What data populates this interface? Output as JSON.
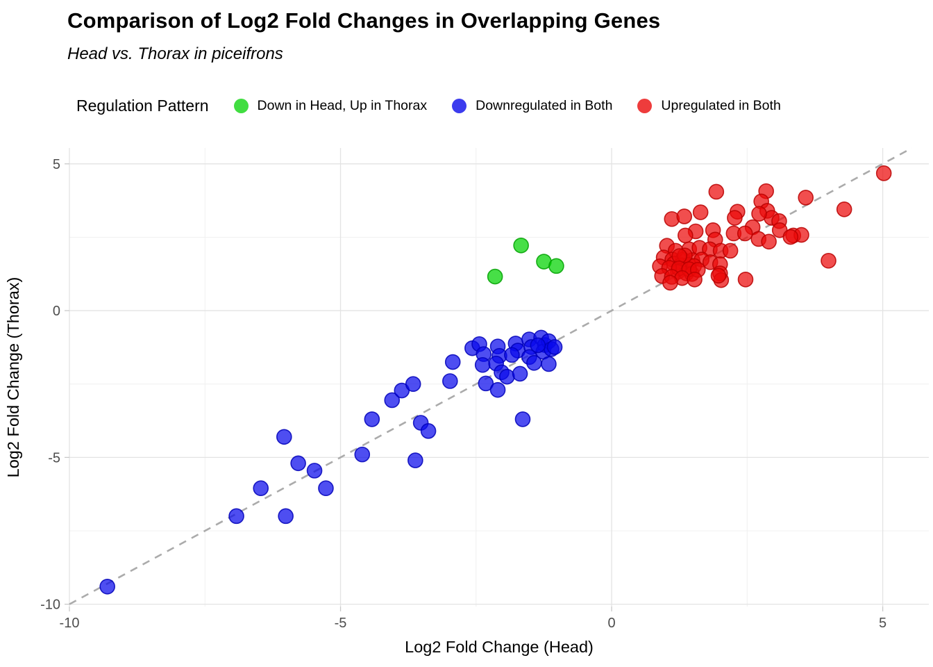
{
  "header": {
    "title": "Comparison of Log2 Fold Changes in Overlapping Genes",
    "subtitle": "Head vs. Thorax in piceifrons"
  },
  "legend": {
    "title": "Regulation Pattern",
    "items": [
      {
        "label": "Down in Head, Up in Thorax",
        "color": "#41dd41"
      },
      {
        "label": "Downregulated in Both",
        "color": "#3c3cee"
      },
      {
        "label": "Upregulated in Both",
        "color": "#ee3c3c"
      }
    ]
  },
  "axes": {
    "x_label": "Log2 Fold Change (Head)",
    "y_label": "Log2 Fold Change (Thorax)",
    "x_tick_labels": [
      "-10",
      "-5",
      "0",
      "5"
    ],
    "y_tick_labels": [
      "-10",
      "-5",
      "0",
      "5"
    ]
  },
  "chart_data": {
    "type": "scatter",
    "title": "Comparison of Log2 Fold Changes in Overlapping Genes",
    "subtitle": "Head vs. Thorax in piceifrons",
    "xlabel": "Log2 Fold Change (Head)",
    "ylabel": "Log2 Fold Change (Thorax)",
    "xlim": [
      -10.0,
      5.85
    ],
    "ylim": [
      -10.08,
      5.54
    ],
    "x_ticks": [
      -10,
      -5,
      0,
      5
    ],
    "y_ticks": [
      -10,
      -5,
      0,
      5
    ],
    "x_minor_ticks": [
      -7.5,
      -2.5,
      2.5
    ],
    "y_minor_ticks": [
      -7.5,
      -2.5,
      2.5
    ],
    "grid": "on",
    "legend_position": "top",
    "point_radius": 10.5,
    "identity_line": {
      "equation": "y = x",
      "from": -10.0,
      "to": 5.54,
      "color": "#ababab",
      "style": "dashed"
    },
    "colors": {
      "major_grid": "#e3e3e3",
      "minor_grid": "#f0f0f0",
      "tick_text": "#4d4d4d",
      "tick_mark": "#c9c9c9"
    },
    "series": [
      {
        "id": "green",
        "name": "Down in Head, Up in Thorax",
        "color": "#41dd41",
        "fill_rgba": "rgba(0,210,0,0.72)",
        "stroke_rgba": "rgba(0,160,0,0.85)",
        "points": [
          [
            -2.15,
            1.16
          ],
          [
            -1.67,
            2.22
          ],
          [
            -1.25,
            1.67
          ],
          [
            -1.02,
            1.52
          ]
        ]
      },
      {
        "id": "blue",
        "name": "Downregulated in Both",
        "color": "#3c3cee",
        "fill_rgba": "rgba(10,10,235,0.72)",
        "stroke_rgba": "rgba(0,0,185,0.85)",
        "points": [
          [
            -9.3,
            -9.4
          ],
          [
            -6.92,
            -7.0
          ],
          [
            -6.01,
            -7.0
          ],
          [
            -6.47,
            -6.05
          ],
          [
            -5.27,
            -6.05
          ],
          [
            -6.04,
            -4.3
          ],
          [
            -5.78,
            -5.2
          ],
          [
            -5.48,
            -5.45
          ],
          [
            -4.6,
            -4.9
          ],
          [
            -3.62,
            -5.1
          ],
          [
            -4.42,
            -3.7
          ],
          [
            -4.05,
            -3.05
          ],
          [
            -3.87,
            -2.72
          ],
          [
            -3.66,
            -2.5
          ],
          [
            -3.52,
            -3.82
          ],
          [
            -3.38,
            -4.1
          ],
          [
            -1.64,
            -3.7
          ],
          [
            -2.93,
            -1.75
          ],
          [
            -2.98,
            -2.4
          ],
          [
            -2.57,
            -1.28
          ],
          [
            -2.44,
            -1.14
          ],
          [
            -2.36,
            -1.48
          ],
          [
            -2.38,
            -1.85
          ],
          [
            -2.32,
            -2.48
          ],
          [
            -2.1,
            -1.22
          ],
          [
            -2.07,
            -1.54
          ],
          [
            -2.13,
            -1.8
          ],
          [
            -2.03,
            -2.1
          ],
          [
            -2.1,
            -2.7
          ],
          [
            -1.93,
            -2.25
          ],
          [
            -1.77,
            -1.12
          ],
          [
            -1.73,
            -1.36
          ],
          [
            -1.84,
            -1.51
          ],
          [
            -1.69,
            -2.15
          ],
          [
            -1.52,
            -0.98
          ],
          [
            -1.48,
            -1.24
          ],
          [
            -1.52,
            -1.58
          ],
          [
            -1.43,
            -1.78
          ],
          [
            -1.3,
            -0.92
          ],
          [
            -1.23,
            -1.17
          ],
          [
            -1.26,
            -1.4
          ],
          [
            -1.16,
            -1.04
          ],
          [
            -1.11,
            -1.31
          ],
          [
            -1.05,
            -1.24
          ],
          [
            -1.16,
            -1.82
          ],
          [
            -1.36,
            -1.18
          ]
        ]
      },
      {
        "id": "red",
        "name": "Upregulated in Both",
        "color": "#ee3c3c",
        "fill_rgba": "rgba(235,10,10,0.72)",
        "stroke_rgba": "rgba(185,0,0,0.85)",
        "points": [
          [
            5.02,
            4.68
          ],
          [
            4.29,
            3.45
          ],
          [
            4.0,
            1.7
          ],
          [
            3.58,
            3.85
          ],
          [
            2.85,
            4.07
          ],
          [
            1.93,
            4.05
          ],
          [
            2.76,
            3.72
          ],
          [
            2.87,
            3.4
          ],
          [
            2.95,
            3.16
          ],
          [
            3.09,
            3.05
          ],
          [
            3.35,
            2.56
          ],
          [
            3.5,
            2.58
          ],
          [
            2.32,
            3.37
          ],
          [
            2.27,
            3.16
          ],
          [
            1.11,
            3.12
          ],
          [
            1.34,
            3.21
          ],
          [
            1.64,
            3.35
          ],
          [
            2.72,
            3.3
          ],
          [
            1.55,
            2.7
          ],
          [
            1.87,
            2.74
          ],
          [
            2.6,
            2.84
          ],
          [
            3.1,
            2.74
          ],
          [
            3.3,
            2.51
          ],
          [
            2.25,
            2.63
          ],
          [
            2.46,
            2.63
          ],
          [
            1.36,
            2.56
          ],
          [
            1.91,
            2.42
          ],
          [
            2.71,
            2.44
          ],
          [
            2.9,
            2.35
          ],
          [
            1.02,
            2.21
          ],
          [
            1.18,
            2.04
          ],
          [
            1.43,
            2.09
          ],
          [
            1.62,
            2.14
          ],
          [
            1.81,
            2.09
          ],
          [
            2.01,
            2.04
          ],
          [
            2.19,
            2.04
          ],
          [
            0.96,
            1.81
          ],
          [
            1.12,
            1.74
          ],
          [
            1.31,
            1.74
          ],
          [
            1.49,
            1.72
          ],
          [
            1.66,
            1.74
          ],
          [
            1.82,
            1.65
          ],
          [
            2.0,
            1.58
          ],
          [
            1.15,
            1.6
          ],
          [
            1.28,
            1.55
          ],
          [
            1.42,
            1.56
          ],
          [
            1.22,
            1.32
          ],
          [
            1.38,
            1.27
          ],
          [
            1.52,
            1.52
          ],
          [
            1.35,
            1.88
          ],
          [
            1.25,
            1.86
          ],
          [
            1.48,
            1.25
          ],
          [
            0.89,
            1.51
          ],
          [
            1.06,
            1.46
          ],
          [
            1.24,
            1.44
          ],
          [
            1.43,
            1.41
          ],
          [
            1.59,
            1.39
          ],
          [
            0.93,
            1.18
          ],
          [
            1.11,
            1.15
          ],
          [
            1.3,
            1.11
          ],
          [
            1.53,
            1.06
          ],
          [
            2.0,
            1.27
          ],
          [
            2.02,
            1.04
          ],
          [
            2.47,
            1.06
          ],
          [
            1.97,
            1.19
          ],
          [
            1.08,
            0.95
          ]
        ]
      }
    ]
  }
}
